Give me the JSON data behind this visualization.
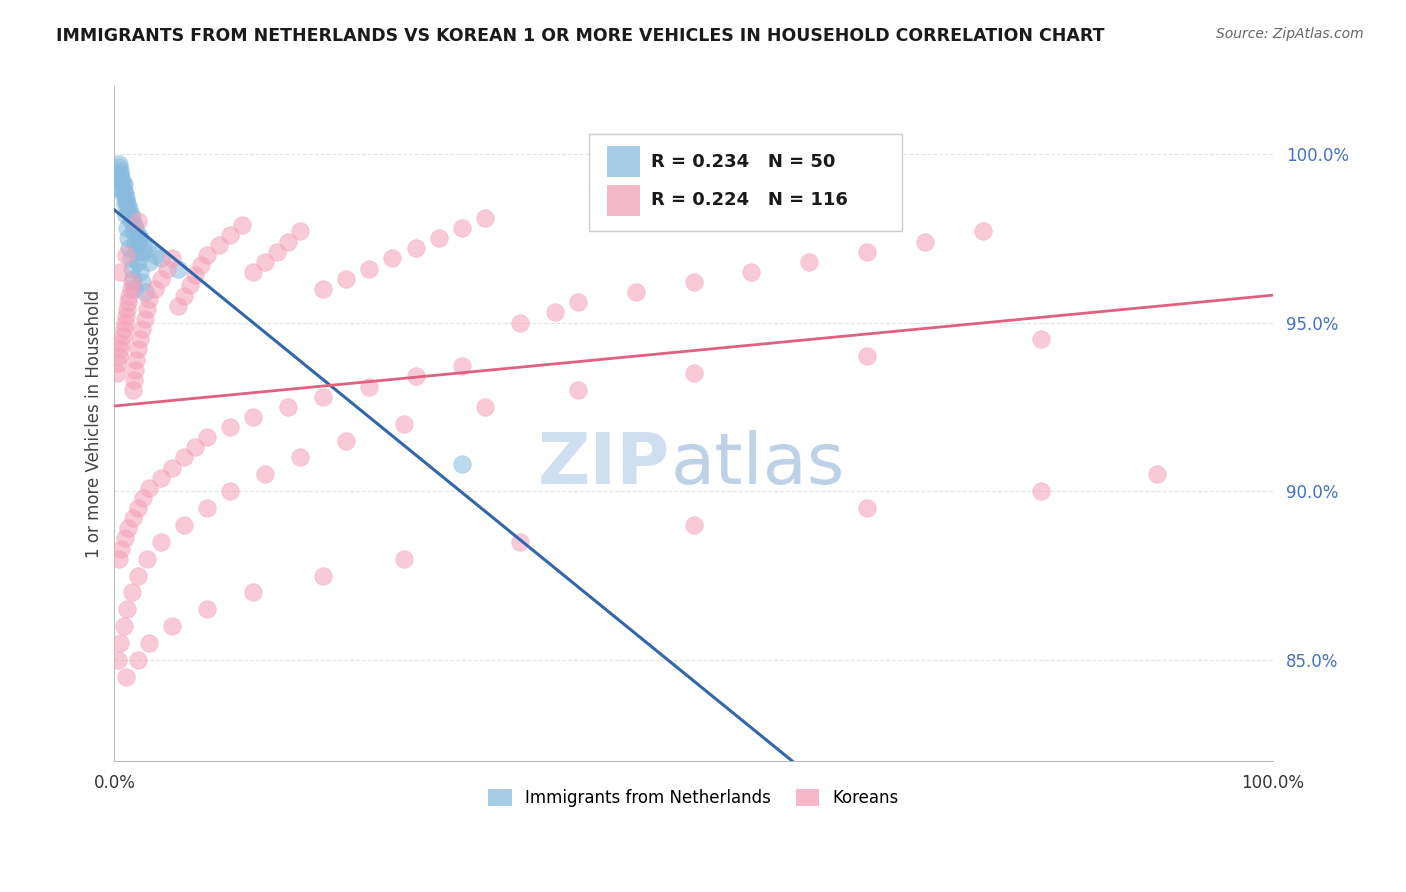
{
  "title": "IMMIGRANTS FROM NETHERLANDS VS KOREAN 1 OR MORE VEHICLES IN HOUSEHOLD CORRELATION CHART",
  "source": "Source: ZipAtlas.com",
  "ylabel": "1 or more Vehicles in Household",
  "ytick_values": [
    85.0,
    90.0,
    95.0,
    100.0
  ],
  "xlim": [
    0.0,
    100.0
  ],
  "ylim": [
    82.0,
    102.0
  ],
  "r_blue": 0.234,
  "n_blue": 50,
  "r_pink": 0.224,
  "n_pink": 116,
  "blue_color": "#88bbdd",
  "pink_color": "#f4a0b8",
  "blue_line_color": "#3366aa",
  "pink_line_color": "#e06080",
  "background_color": "#ffffff",
  "grid_color": "#dddddd",
  "watermark_color": "#d0dff0",
  "blue_x": [
    0.3,
    0.5,
    0.6,
    0.7,
    0.8,
    0.9,
    1.0,
    1.1,
    1.2,
    1.3,
    1.4,
    1.5,
    1.6,
    1.7,
    1.8,
    1.9,
    2.0,
    2.2,
    2.4,
    2.6,
    0.4,
    0.6,
    0.8,
    1.0,
    1.2,
    1.4,
    1.6,
    2.0,
    2.5,
    3.0,
    0.5,
    0.7,
    1.0,
    1.3,
    1.5,
    1.8,
    2.2,
    2.8,
    4.0,
    5.5,
    0.4,
    0.6,
    0.9,
    1.1,
    1.4,
    1.7,
    2.0,
    2.5,
    3.5,
    30.0
  ],
  "blue_y": [
    99.0,
    99.5,
    99.2,
    98.8,
    99.1,
    98.5,
    98.2,
    97.8,
    97.5,
    97.2,
    96.9,
    96.6,
    96.3,
    96.0,
    97.4,
    97.1,
    96.8,
    96.5,
    96.2,
    95.9,
    99.6,
    99.3,
    98.9,
    98.6,
    98.3,
    98.0,
    97.7,
    97.4,
    97.1,
    96.8,
    99.4,
    99.1,
    98.7,
    98.4,
    98.1,
    97.8,
    97.5,
    97.2,
    96.9,
    96.6,
    99.7,
    99.2,
    98.8,
    98.5,
    98.2,
    97.9,
    97.6,
    97.3,
    97.0,
    90.8
  ],
  "pink_x": [
    0.2,
    0.3,
    0.4,
    0.5,
    0.6,
    0.7,
    0.8,
    0.9,
    1.0,
    1.1,
    1.2,
    1.3,
    1.4,
    1.5,
    1.6,
    1.7,
    1.8,
    1.9,
    2.0,
    2.2,
    2.4,
    2.6,
    2.8,
    3.0,
    3.5,
    4.0,
    4.5,
    5.0,
    5.5,
    6.0,
    6.5,
    7.0,
    7.5,
    8.0,
    9.0,
    10.0,
    11.0,
    12.0,
    13.0,
    14.0,
    15.0,
    16.0,
    18.0,
    20.0,
    22.0,
    24.0,
    26.0,
    28.0,
    30.0,
    32.0,
    35.0,
    38.0,
    40.0,
    45.0,
    50.0,
    55.0,
    60.0,
    65.0,
    70.0,
    75.0,
    0.4,
    0.6,
    0.9,
    1.2,
    1.6,
    2.0,
    2.5,
    3.0,
    4.0,
    5.0,
    6.0,
    7.0,
    8.0,
    10.0,
    12.0,
    15.0,
    18.0,
    22.0,
    26.0,
    30.0,
    0.3,
    0.5,
    0.8,
    1.1,
    1.5,
    2.0,
    2.8,
    4.0,
    6.0,
    8.0,
    10.0,
    13.0,
    16.0,
    20.0,
    25.0,
    32.0,
    40.0,
    50.0,
    65.0,
    80.0,
    1.0,
    2.0,
    3.0,
    5.0,
    8.0,
    12.0,
    18.0,
    25.0,
    35.0,
    50.0,
    65.0,
    80.0,
    90.0,
    0.5,
    1.0,
    2.0
  ],
  "pink_y": [
    93.5,
    93.8,
    94.0,
    94.2,
    94.4,
    94.6,
    94.8,
    95.0,
    95.2,
    95.4,
    95.6,
    95.8,
    96.0,
    96.2,
    93.0,
    93.3,
    93.6,
    93.9,
    94.2,
    94.5,
    94.8,
    95.1,
    95.4,
    95.7,
    96.0,
    96.3,
    96.6,
    96.9,
    95.5,
    95.8,
    96.1,
    96.4,
    96.7,
    97.0,
    97.3,
    97.6,
    97.9,
    96.5,
    96.8,
    97.1,
    97.4,
    97.7,
    96.0,
    96.3,
    96.6,
    96.9,
    97.2,
    97.5,
    97.8,
    98.1,
    95.0,
    95.3,
    95.6,
    95.9,
    96.2,
    96.5,
    96.8,
    97.1,
    97.4,
    97.7,
    88.0,
    88.3,
    88.6,
    88.9,
    89.2,
    89.5,
    89.8,
    90.1,
    90.4,
    90.7,
    91.0,
    91.3,
    91.6,
    91.9,
    92.2,
    92.5,
    92.8,
    93.1,
    93.4,
    93.7,
    85.0,
    85.5,
    86.0,
    86.5,
    87.0,
    87.5,
    88.0,
    88.5,
    89.0,
    89.5,
    90.0,
    90.5,
    91.0,
    91.5,
    92.0,
    92.5,
    93.0,
    93.5,
    94.0,
    94.5,
    84.5,
    85.0,
    85.5,
    86.0,
    86.5,
    87.0,
    87.5,
    88.0,
    88.5,
    89.0,
    89.5,
    90.0,
    90.5,
    96.5,
    97.0,
    98.0
  ]
}
